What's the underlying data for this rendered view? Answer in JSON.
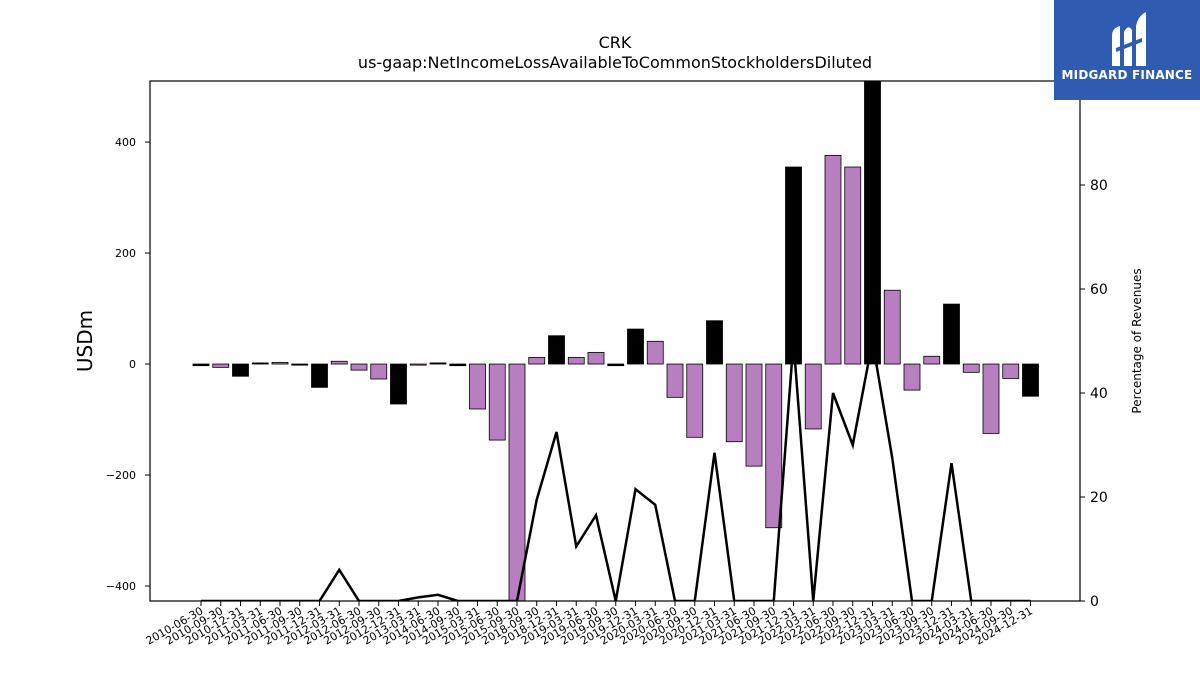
{
  "brand": {
    "name": "MIDGARD FINANCE",
    "bg_color": "#2f5bb0",
    "mark_icon": "midgard-logo-icon"
  },
  "chart_data": {
    "type": "bar",
    "title": "CRK",
    "subtitle": "us-gaap:NetIncomeLossAvailableToCommonStockholdersDiluted",
    "ylabel": "USDm",
    "ylabel_right": "Percentage of Revenues",
    "ylim": [
      -427,
      510
    ],
    "ylim_right": [
      0,
      100
    ],
    "yticks": [
      -400,
      -200,
      0,
      200,
      400
    ],
    "yticks_right": [
      0,
      20,
      40,
      60,
      80
    ],
    "ytick_labels": [
      "−400",
      "−200",
      "0",
      "200",
      "400"
    ],
    "ytick_labels_right": [
      "0",
      "20",
      "40",
      "60",
      "80"
    ],
    "grid": false,
    "legend": "none",
    "colors": {
      "quarterly": "#b87fc0",
      "annual": "#000000",
      "line": "#000000"
    },
    "categories": [
      "2010-06-30",
      "2010-09-30",
      "2010-12-31",
      "2011-03-31",
      "2011-06-30",
      "2011-09-30",
      "2011-12-31",
      "2012-03-31",
      "2012-06-30",
      "2012-09-30",
      "2012-12-31",
      "2013-03-31",
      "2014-06-30",
      "2014-09-30",
      "2015-03-31",
      "2015-06-30",
      "2015-09-30",
      "2018-09-30",
      "2018-12-31",
      "2019-03-31",
      "2019-06-30",
      "2019-09-30",
      "2019-12-31",
      "2020-03-31",
      "2020-06-30",
      "2020-09-30",
      "2020-12-31",
      "2021-03-31",
      "2021-06-30",
      "2021-09-30",
      "2021-12-31",
      "2022-03-31",
      "2022-06-30",
      "2022-09-30",
      "2022-12-31",
      "2023-03-31",
      "2023-06-30",
      "2023-09-30",
      "2023-12-31",
      "2024-03-31",
      "2024-06-30",
      "2024-09-30",
      "2024-12-31"
    ],
    "series": [
      {
        "name": "bars",
        "values": [
          -3,
          -6,
          -22,
          2,
          3,
          -2,
          -42,
          5,
          -11,
          -27,
          -72,
          -2,
          2,
          -3,
          -81,
          -137,
          -427,
          12,
          51,
          12,
          21,
          -3,
          63,
          41,
          -60,
          -132,
          78,
          -140,
          -184,
          -295,
          355,
          -117,
          376,
          355,
          510,
          133,
          -47,
          14,
          108,
          -15,
          -125,
          -26,
          -58
        ]
      },
      {
        "name": "percent",
        "values": [
          0,
          0,
          0,
          0,
          0,
          0,
          0,
          6,
          0,
          0,
          0,
          0.7,
          1.2,
          0,
          0,
          0,
          0,
          19.5,
          32.5,
          10.5,
          16.5,
          0,
          21.5,
          18.5,
          0,
          0,
          28.5,
          0,
          0,
          0,
          50,
          0,
          40,
          30,
          50,
          27.5,
          0,
          0,
          26.5,
          0,
          0,
          0,
          0
        ]
      }
    ],
    "bar_kind": [
      "annual",
      "quarterly",
      "annual",
      "annual",
      "quarterly",
      "annual",
      "annual",
      "quarterly",
      "quarterly",
      "quarterly",
      "annual",
      "quarterly",
      "annual",
      "annual",
      "quarterly",
      "quarterly",
      "quarterly",
      "quarterly",
      "annual",
      "quarterly",
      "quarterly",
      "annual",
      "annual",
      "quarterly",
      "quarterly",
      "quarterly",
      "annual",
      "quarterly",
      "quarterly",
      "quarterly",
      "annual",
      "quarterly",
      "quarterly",
      "quarterly",
      "annual",
      "quarterly",
      "quarterly",
      "quarterly",
      "annual",
      "quarterly",
      "quarterly",
      "quarterly",
      "annual"
    ]
  }
}
